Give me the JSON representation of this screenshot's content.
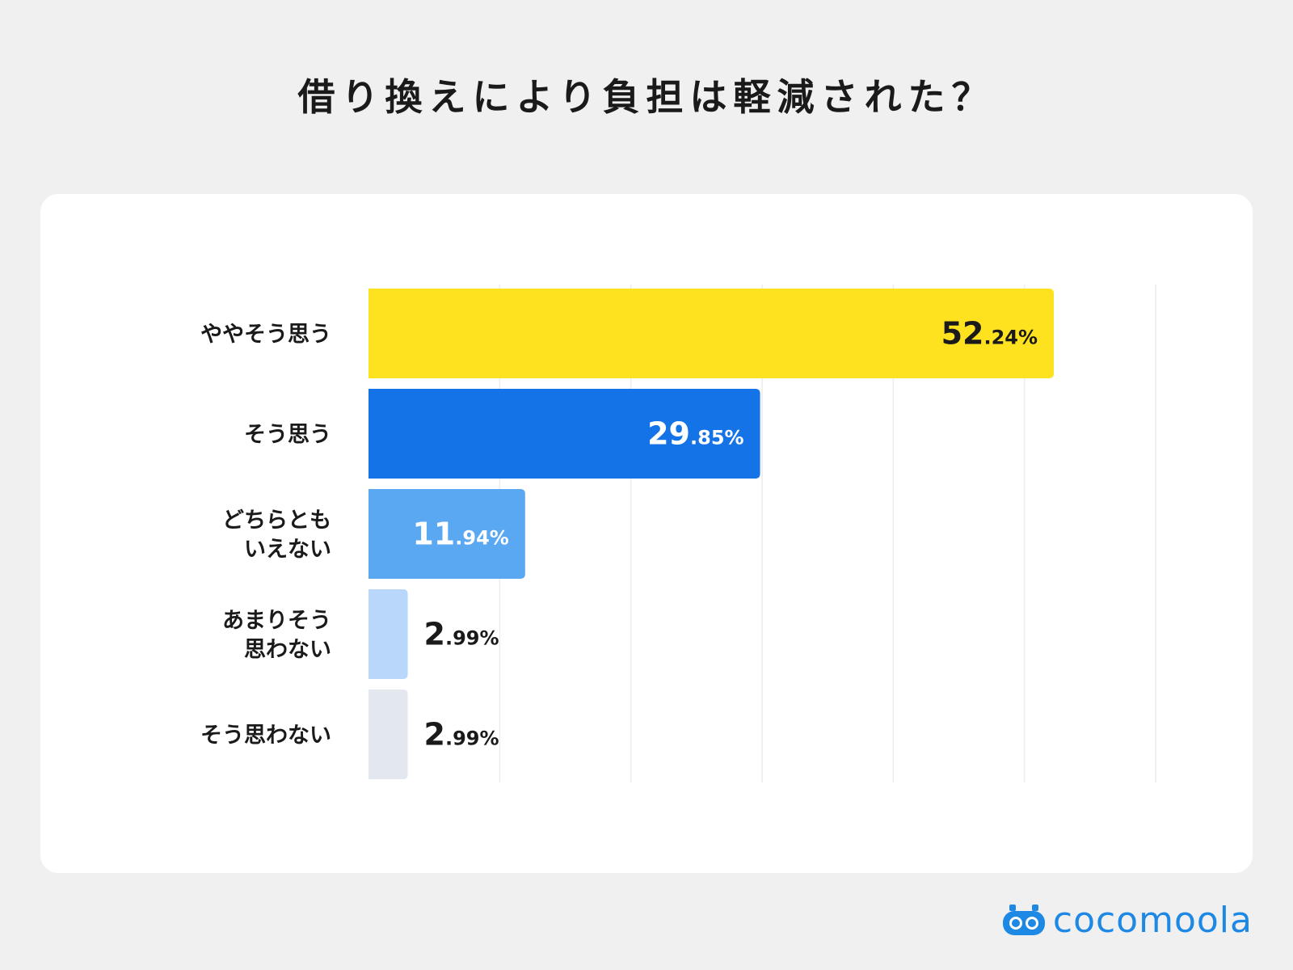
{
  "title": "借り換えにより負担は軽減された？",
  "brand": "cocomoola",
  "chart_data": {
    "type": "bar",
    "orientation": "horizontal",
    "title": "借り換えにより負担は軽減された？",
    "categories": [
      [
        "ややそう思う"
      ],
      [
        "そう思う"
      ],
      [
        "どちらとも",
        "いえない"
      ],
      [
        "あまりそう",
        "思わない"
      ],
      [
        "そう思わない"
      ]
    ],
    "values": [
      52.24,
      29.85,
      11.94,
      2.99,
      2.99
    ],
    "value_labels": [
      {
        "major": "52",
        "minor": ".24%"
      },
      {
        "major": "29",
        "minor": ".85%"
      },
      {
        "major": "11",
        "minor": ".94%"
      },
      {
        "major": "2",
        "minor": ".99%"
      },
      {
        "major": "2",
        "minor": ".99%"
      }
    ],
    "colors": [
      "#ffe21f",
      "#1473e6",
      "#5aa8f2",
      "#b8d7fa",
      "#e3e8ee"
    ],
    "label_colors": [
      "#1a1a1a",
      "#ffffff",
      "#ffffff",
      "#1a1a1a",
      "#1a1a1a"
    ],
    "label_inside": [
      true,
      true,
      true,
      false,
      false
    ],
    "xlim": [
      0,
      60
    ],
    "grid": true,
    "legend": "none"
  }
}
